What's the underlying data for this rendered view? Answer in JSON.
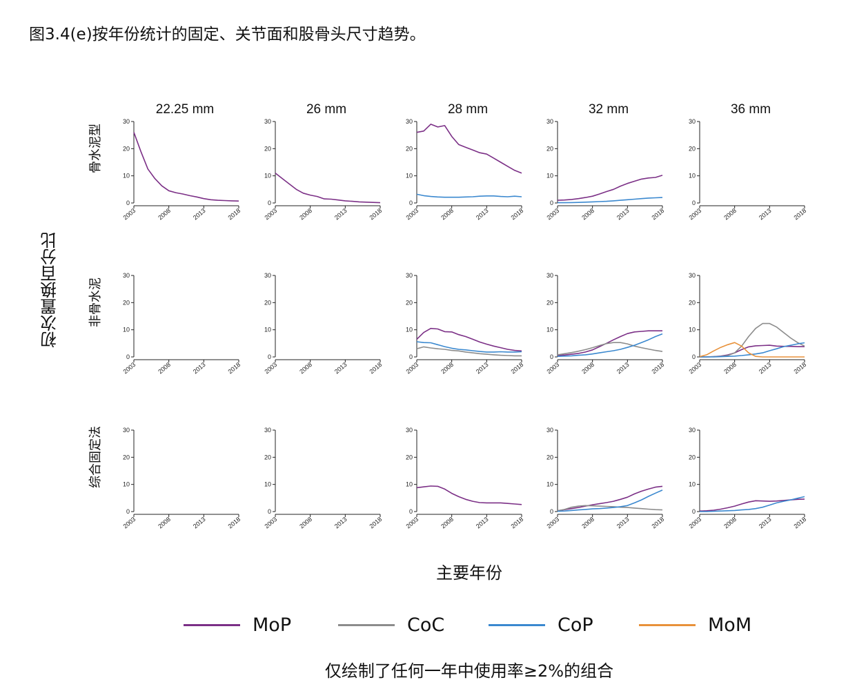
{
  "page": {
    "title": "图3.4(e)按年份统计的固定、关节面和股骨头尺寸趋势。",
    "footnote": "仅绘制了任何一年中使用率≥2%的组合"
  },
  "colors": {
    "MoP": "#7b2f86",
    "CoC": "#8c8c8c",
    "CoP": "#3a88cf",
    "MoM": "#e8913a"
  },
  "chart_data": {
    "type": "line",
    "ylabel": "初次置换百分比",
    "xlabel": "主要年份",
    "x_ticks": [
      2003,
      2008,
      2013,
      2018
    ],
    "y_ticks": [
      0,
      10,
      20,
      30
    ],
    "xlim": [
      2003,
      2018
    ],
    "ylim": [
      0,
      30
    ],
    "columns": [
      "22.25 mm",
      "26 mm",
      "28 mm",
      "32 mm",
      "36 mm"
    ],
    "rows": [
      "骨水泥型",
      "非骨水泥",
      "综合固定法"
    ],
    "legend": [
      {
        "key": "MoP",
        "label": "MoP"
      },
      {
        "key": "CoC",
        "label": "CoC"
      },
      {
        "key": "CoP",
        "label": "CoP"
      },
      {
        "key": "MoM",
        "label": "MoM"
      }
    ],
    "years": [
      2003,
      2004,
      2005,
      2006,
      2007,
      2008,
      2009,
      2010,
      2011,
      2012,
      2013,
      2014,
      2015,
      2016,
      2017,
      2018
    ],
    "panels": [
      {
        "row": 0,
        "col": 0,
        "series": [
          {
            "name": "MoP",
            "values": [
              26,
              19,
              12.5,
              9,
              6.3,
              4.5,
              3.8,
              3.3,
              2.7,
              2.2,
              1.6,
              1.2,
              1,
              0.9,
              0.8,
              0.7
            ]
          }
        ]
      },
      {
        "row": 0,
        "col": 1,
        "series": [
          {
            "name": "MoP",
            "values": [
              11,
              9,
              7,
              5,
              3.6,
              2.9,
              2.4,
              1.5,
              1.4,
              1.1,
              0.8,
              0.6,
              0.4,
              0.3,
              0.2,
              0.1
            ]
          }
        ]
      },
      {
        "row": 0,
        "col": 2,
        "series": [
          {
            "name": "MoP",
            "values": [
              26,
              26.5,
              29,
              28,
              28.5,
              24.5,
              21.5,
              20.5,
              19.5,
              18.5,
              18,
              16.5,
              15,
              13.5,
              12,
              11
            ]
          },
          {
            "name": "CoP",
            "values": [
              3.2,
              2.7,
              2.4,
              2.2,
              2.1,
              2.1,
              2.1,
              2.2,
              2.3,
              2.5,
              2.6,
              2.6,
              2.4,
              2.3,
              2.5,
              2.3
            ]
          }
        ]
      },
      {
        "row": 0,
        "col": 3,
        "series": [
          {
            "name": "MoP",
            "values": [
              1,
              1.1,
              1.3,
              1.6,
              2,
              2.5,
              3.3,
              4.2,
              5,
              6.2,
              7.2,
              8,
              8.8,
              9.2,
              9.4,
              10.2
            ]
          },
          {
            "name": "CoP",
            "values": [
              0.1,
              0.1,
              0.15,
              0.2,
              0.3,
              0.4,
              0.5,
              0.6,
              0.8,
              1,
              1.2,
              1.4,
              1.6,
              1.8,
              1.9,
              2
            ]
          }
        ]
      },
      {
        "row": 0,
        "col": 4,
        "series": []
      },
      {
        "row": 1,
        "col": 0,
        "series": []
      },
      {
        "row": 1,
        "col": 1,
        "series": []
      },
      {
        "row": 1,
        "col": 2,
        "series": [
          {
            "name": "MoP",
            "values": [
              6.5,
              9,
              10.5,
              10.3,
              9.3,
              9.2,
              8.2,
              7.5,
              6.5,
              5.5,
              4.7,
              4,
              3.4,
              2.8,
              2.4,
              2.2
            ]
          },
          {
            "name": "CoC",
            "values": [
              3,
              3.7,
              3.3,
              3,
              2.8,
              2.4,
              2.2,
              1.8,
              1.5,
              1.2,
              1,
              0.8,
              0.6,
              0.5,
              0.4,
              0.4
            ]
          },
          {
            "name": "CoP",
            "values": [
              5.6,
              5.3,
              5.2,
              4.5,
              3.8,
              3.2,
              2.8,
              2.6,
              2.3,
              2,
              1.8,
              1.8,
              1.9,
              1.8,
              1.8,
              1.9
            ]
          }
        ]
      },
      {
        "row": 1,
        "col": 3,
        "series": [
          {
            "name": "MoP",
            "values": [
              0.5,
              0.7,
              1,
              1.3,
              1.8,
              2.6,
              3.8,
              5,
              6.3,
              7.5,
              8.6,
              9.2,
              9.4,
              9.6,
              9.6,
              9.6
            ]
          },
          {
            "name": "CoC",
            "values": [
              0.8,
              1.2,
              1.6,
              2.1,
              2.7,
              3.4,
              4.2,
              4.9,
              5.3,
              5.3,
              4.8,
              4,
              3.4,
              2.9,
              2.4,
              2
            ]
          },
          {
            "name": "CoP",
            "values": [
              0.2,
              0.3,
              0.4,
              0.6,
              0.8,
              1.1,
              1.5,
              1.9,
              2.3,
              2.8,
              3.5,
              4.3,
              5.3,
              6.3,
              7.5,
              8.5
            ]
          }
        ]
      },
      {
        "row": 1,
        "col": 4,
        "series": [
          {
            "name": "MoP",
            "values": [
              0,
              0,
              0.1,
              0.3,
              0.7,
              1.5,
              2.7,
              3.7,
              4.1,
              4.2,
              4.3,
              4,
              3.9,
              3.9,
              3.8,
              3.8
            ]
          },
          {
            "name": "CoC",
            "values": [
              0,
              0,
              0.1,
              0.2,
              0.5,
              1.5,
              4,
              7.5,
              10.5,
              12.3,
              12.3,
              11,
              9,
              7,
              5.3,
              4
            ]
          },
          {
            "name": "CoP",
            "values": [
              0,
              0,
              0,
              0.1,
              0.2,
              0.3,
              0.5,
              0.8,
              1.1,
              1.5,
              2.3,
              3,
              3.8,
              4.3,
              4.8,
              5.2
            ]
          },
          {
            "name": "MoM",
            "values": [
              0.1,
              0.8,
              2.2,
              3.5,
              4.5,
              5.3,
              4,
              1.5,
              0.2,
              0,
              0,
              0,
              0,
              0,
              0,
              0
            ]
          }
        ]
      },
      {
        "row": 2,
        "col": 0,
        "series": []
      },
      {
        "row": 2,
        "col": 1,
        "series": []
      },
      {
        "row": 2,
        "col": 2,
        "series": [
          {
            "name": "MoP",
            "values": [
              8.8,
              9.1,
              9.4,
              9.3,
              8.3,
              6.7,
              5.5,
              4.5,
              3.8,
              3.3,
              3.2,
              3.2,
              3.2,
              3,
              2.8,
              2.6
            ]
          }
        ]
      },
      {
        "row": 2,
        "col": 3,
        "series": [
          {
            "name": "MoP",
            "values": [
              0.3,
              0.7,
              1.1,
              1.5,
              2,
              2.5,
              2.9,
              3.3,
              3.8,
              4.5,
              5.3,
              6.5,
              7.5,
              8.3,
              9,
              9.3
            ]
          },
          {
            "name": "CoC",
            "values": [
              0.3,
              0.8,
              1.6,
              2,
              2.2,
              2.1,
              2,
              1.9,
              1.8,
              1.6,
              1.5,
              1.3,
              1.1,
              0.9,
              0.7,
              0.6
            ]
          },
          {
            "name": "CoP",
            "values": [
              0.1,
              0.2,
              0.4,
              0.6,
              0.8,
              1,
              1.1,
              1.3,
              1.5,
              1.8,
              2.2,
              3.2,
              4.3,
              5.6,
              6.8,
              7.9
            ]
          }
        ]
      },
      {
        "row": 2,
        "col": 4,
        "series": [
          {
            "name": "MoP",
            "values": [
              0.2,
              0.3,
              0.5,
              0.9,
              1.4,
              2,
              2.8,
              3.5,
              4,
              3.9,
              3.8,
              3.9,
              4.1,
              4.3,
              4.5,
              4.6
            ]
          },
          {
            "name": "CoP",
            "values": [
              0,
              0,
              0.1,
              0.2,
              0.3,
              0.4,
              0.6,
              0.8,
              1.1,
              1.6,
              2.4,
              3.2,
              3.8,
              4.3,
              4.9,
              5.5
            ]
          }
        ]
      }
    ]
  }
}
